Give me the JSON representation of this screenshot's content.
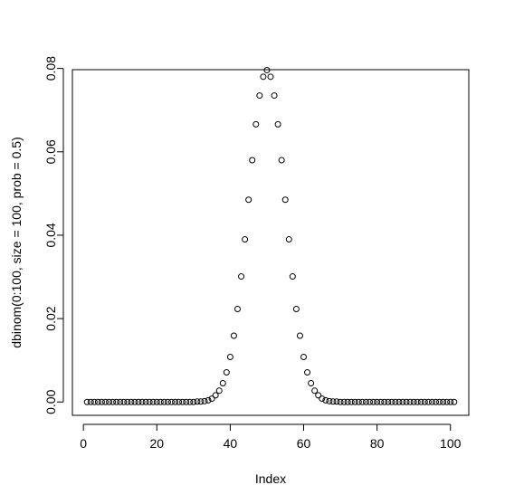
{
  "chart_data": {
    "type": "scatter",
    "title": "",
    "xlabel": "Index",
    "ylabel": "dbinom(0:100, size = 100, prob = 0.5)",
    "xlim": [
      -3,
      105
    ],
    "ylim": [
      -0.0032,
      0.0797
    ],
    "x_ticks": [
      0,
      20,
      40,
      60,
      80,
      100
    ],
    "x_tick_labels": [
      "0",
      "20",
      "40",
      "60",
      "80",
      "100"
    ],
    "y_ticks": [
      0,
      0.02,
      0.04,
      0.06,
      0.08
    ],
    "y_tick_labels": [
      "0.00",
      "0.02",
      "0.04",
      "0.06",
      "0.08"
    ],
    "grid": false,
    "marker": "open-circle",
    "x": [
      1,
      2,
      3,
      4,
      5,
      6,
      7,
      8,
      9,
      10,
      11,
      12,
      13,
      14,
      15,
      16,
      17,
      18,
      19,
      20,
      21,
      22,
      23,
      24,
      25,
      26,
      27,
      28,
      29,
      30,
      31,
      32,
      33,
      34,
      35,
      36,
      37,
      38,
      39,
      40,
      41,
      42,
      43,
      44,
      45,
      46,
      47,
      48,
      49,
      50,
      51,
      52,
      53,
      54,
      55,
      56,
      57,
      58,
      59,
      60,
      61,
      62,
      63,
      64,
      65,
      66,
      67,
      68,
      69,
      70,
      71,
      72,
      73,
      74,
      75,
      76,
      77,
      78,
      79,
      80,
      81,
      82,
      83,
      84,
      85,
      86,
      87,
      88,
      89,
      90,
      91,
      92,
      93,
      94,
      95,
      96,
      97,
      98,
      99,
      100,
      101
    ],
    "y": [
      0,
      0,
      0,
      0,
      0,
      0,
      0,
      0,
      0,
      0,
      0,
      0,
      0,
      0,
      0,
      0,
      0,
      0,
      0,
      0,
      0,
      0,
      0,
      0,
      0,
      0,
      0,
      0,
      0,
      0,
      0.0001,
      0.0001,
      0.0002,
      0.0004,
      0.0008,
      0.0016,
      0.0027,
      0.0045,
      0.0071,
      0.0108,
      0.0159,
      0.0223,
      0.0301,
      0.039,
      0.0485,
      0.058,
      0.0666,
      0.0735,
      0.078,
      0.0796,
      0.078,
      0.0735,
      0.0666,
      0.058,
      0.0485,
      0.039,
      0.0301,
      0.0223,
      0.0159,
      0.0108,
      0.0071,
      0.0045,
      0.0027,
      0.0016,
      0.0008,
      0.0004,
      0.0002,
      0.0001,
      0.0001,
      0,
      0,
      0,
      0,
      0,
      0,
      0,
      0,
      0,
      0,
      0,
      0,
      0,
      0,
      0,
      0,
      0,
      0,
      0,
      0,
      0,
      0,
      0,
      0,
      0,
      0,
      0,
      0,
      0,
      0,
      0,
      0
    ]
  }
}
